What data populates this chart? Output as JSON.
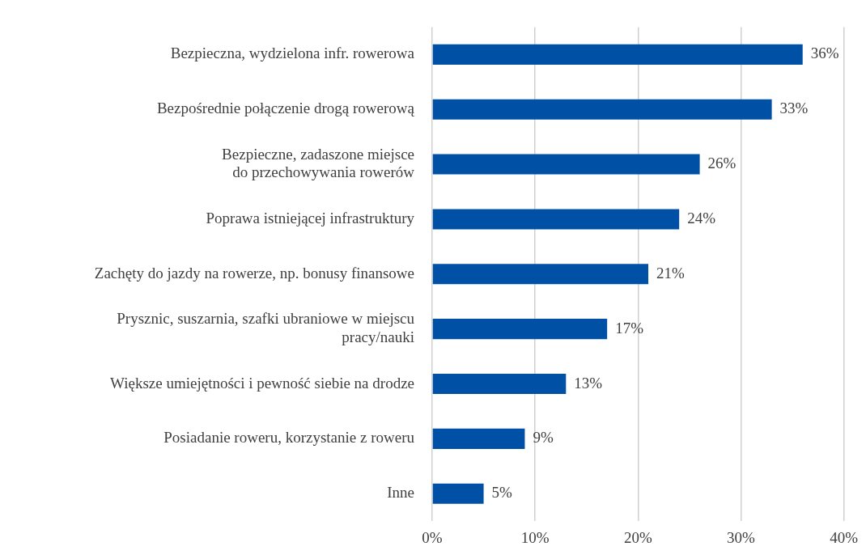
{
  "chart_data": {
    "type": "bar",
    "orientation": "horizontal",
    "categories": [
      "Bezpieczna, wydzielona infr. rowerowa",
      "Bezpośrednie połączenie drogą rowerową",
      "Bezpieczne, zadaszone miejsce\ndo przechowywania rowerów",
      "Poprawa istniejącej infrastruktury",
      "Zachęty do jazdy na rowerze, np. bonusy finansowe",
      "Prysznic, suszarnia, szafki ubraniowe w miejscu\npracy/nauki",
      "Większe umiejętności i pewność siebie na drodze",
      "Posiadanie roweru, korzystanie z roweru",
      "Inne"
    ],
    "values": [
      36,
      33,
      26,
      24,
      21,
      17,
      13,
      9,
      5
    ],
    "value_labels": [
      "36%",
      "33%",
      "26%",
      "24%",
      "21%",
      "17%",
      "13%",
      "9%",
      "5%"
    ],
    "color": "#0050a5",
    "xlim": [
      0,
      40
    ],
    "xticks": [
      {
        "value": 0,
        "label": "0%"
      },
      {
        "value": 10,
        "label": "10%"
      },
      {
        "value": 20,
        "label": "20%"
      },
      {
        "value": 30,
        "label": "30%"
      },
      {
        "value": 40,
        "label": "40%"
      }
    ],
    "grid": "x"
  }
}
